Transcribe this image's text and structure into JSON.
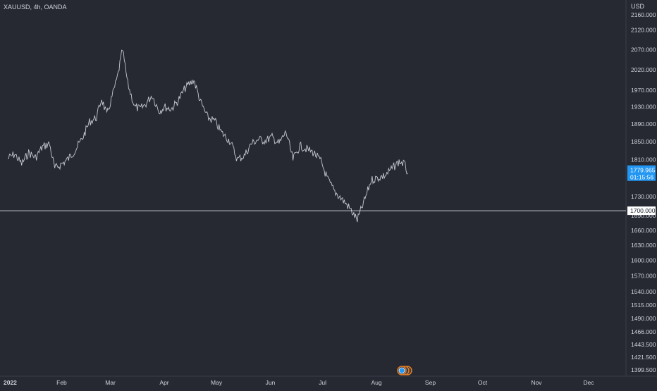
{
  "header": {
    "symbol_info": "XAUUSD, 4h, OANDA"
  },
  "price_axis": {
    "currency": "USD",
    "tick_labels": [
      "2160.000",
      "2120.000",
      "2070.000",
      "2020.000",
      "1970.000",
      "1930.000",
      "1890.000",
      "1850.000",
      "1810.000",
      "1730.000",
      "1690.000",
      "1660.000",
      "1630.000",
      "1600.000",
      "1570.000",
      "1540.000",
      "1515.000",
      "1490.000",
      "1466.000",
      "1443.500",
      "1421.500",
      "1399.500"
    ],
    "last_price_label": "1779.965",
    "countdown_label": "01:15:56",
    "horizontal_line_label": "1700.000"
  },
  "time_axis": {
    "tick_labels": [
      "2022",
      "Feb",
      "Mar",
      "Apr",
      "May",
      "Jun",
      "Jul",
      "Aug",
      "Sep",
      "Oct",
      "Nov",
      "Dec"
    ]
  },
  "colors": {
    "background": "#262832",
    "series": "#c5c8d0",
    "axis_text": "#d1d4dc",
    "last_price_badge": "#2196f3",
    "horizontal_line": "#ffffff",
    "event_marker": "#e67e22"
  },
  "chart_data": {
    "type": "line",
    "title": "XAUUSD, 4h, OANDA",
    "xlabel": "",
    "ylabel": "USD",
    "x_scale": "date",
    "y_scale": "log",
    "ylim": [
      1390,
      2200
    ],
    "xlim": [
      "2022-01-01",
      "2022-12-15"
    ],
    "grid": false,
    "series": [
      {
        "name": "XAUUSD",
        "points": [
          [
            "2022-01-01",
            1812
          ],
          [
            "2022-01-05",
            1822
          ],
          [
            "2022-01-09",
            1800
          ],
          [
            "2022-01-13",
            1825
          ],
          [
            "2022-01-17",
            1814
          ],
          [
            "2022-01-21",
            1838
          ],
          [
            "2022-01-25",
            1845
          ],
          [
            "2022-01-28",
            1790
          ],
          [
            "2022-02-01",
            1800
          ],
          [
            "2022-02-05",
            1812
          ],
          [
            "2022-02-09",
            1832
          ],
          [
            "2022-02-13",
            1858
          ],
          [
            "2022-02-17",
            1895
          ],
          [
            "2022-02-21",
            1905
          ],
          [
            "2022-02-24",
            1950
          ],
          [
            "2022-02-27",
            1910
          ],
          [
            "2022-03-02",
            1955
          ],
          [
            "2022-03-05",
            2000
          ],
          [
            "2022-03-08",
            2070
          ],
          [
            "2022-03-11",
            1985
          ],
          [
            "2022-03-15",
            1930
          ],
          [
            "2022-03-18",
            1925
          ],
          [
            "2022-03-21",
            1935
          ],
          [
            "2022-03-25",
            1958
          ],
          [
            "2022-03-29",
            1920
          ],
          [
            "2022-04-01",
            1930
          ],
          [
            "2022-04-05",
            1925
          ],
          [
            "2022-04-09",
            1945
          ],
          [
            "2022-04-13",
            1975
          ],
          [
            "2022-04-18",
            1995
          ],
          [
            "2022-04-22",
            1940
          ],
          [
            "2022-04-26",
            1905
          ],
          [
            "2022-04-30",
            1897
          ],
          [
            "2022-05-04",
            1870
          ],
          [
            "2022-05-09",
            1850
          ],
          [
            "2022-05-13",
            1810
          ],
          [
            "2022-05-17",
            1818
          ],
          [
            "2022-05-21",
            1845
          ],
          [
            "2022-05-25",
            1855
          ],
          [
            "2022-05-29",
            1852
          ],
          [
            "2022-06-02",
            1860
          ],
          [
            "2022-06-06",
            1845
          ],
          [
            "2022-06-10",
            1872
          ],
          [
            "2022-06-14",
            1810
          ],
          [
            "2022-06-18",
            1840
          ],
          [
            "2022-06-22",
            1833
          ],
          [
            "2022-06-26",
            1825
          ],
          [
            "2022-06-30",
            1806
          ],
          [
            "2022-07-04",
            1766
          ],
          [
            "2022-07-08",
            1740
          ],
          [
            "2022-07-12",
            1725
          ],
          [
            "2022-07-16",
            1708
          ],
          [
            "2022-07-21",
            1681
          ],
          [
            "2022-07-25",
            1720
          ],
          [
            "2022-07-29",
            1765
          ],
          [
            "2022-08-02",
            1770
          ],
          [
            "2022-08-06",
            1775
          ],
          [
            "2022-08-10",
            1790
          ],
          [
            "2022-08-14",
            1805
          ],
          [
            "2022-08-17",
            1800
          ],
          [
            "2022-08-19",
            1779.965
          ]
        ]
      }
    ],
    "horizontal_lines": [
      1700
    ],
    "last_price": 1779.965
  }
}
